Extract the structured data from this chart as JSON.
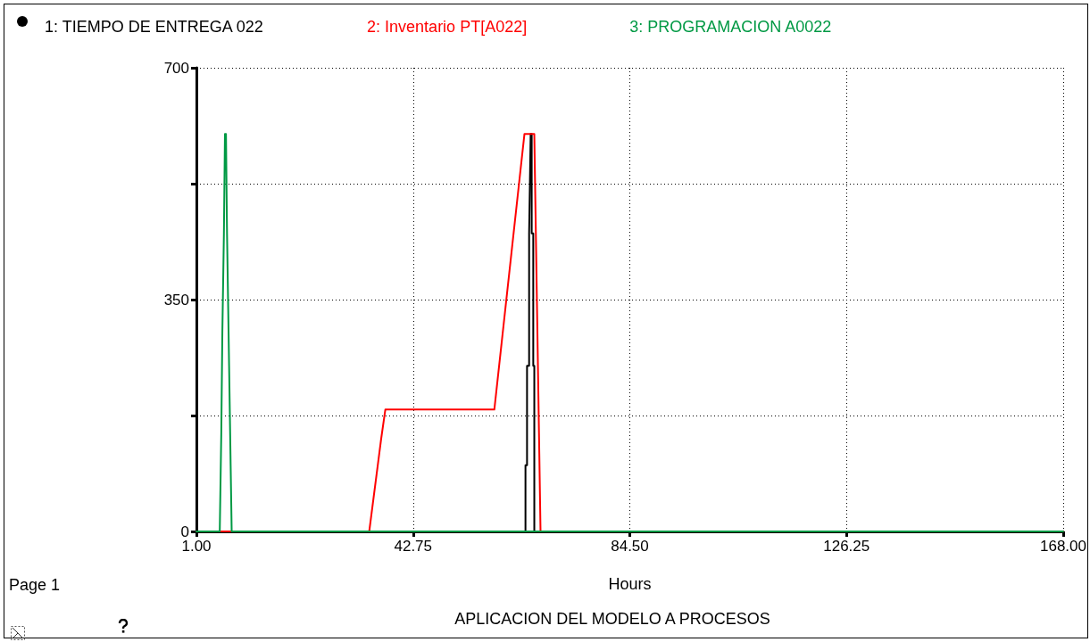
{
  "chart_data": {
    "type": "line",
    "xlabel": "Hours",
    "annotations": [
      "APLICACION DEL MODELO A PROCESOS",
      "Page 1"
    ],
    "xlim": [
      1,
      168
    ],
    "xticks": [
      {
        "value": 1,
        "label": "1.00"
      },
      {
        "value": 42.75,
        "label": "42.75"
      },
      {
        "value": 84.5,
        "label": "84.50"
      },
      {
        "value": 126.25,
        "label": "126.25"
      },
      {
        "value": 168,
        "label": "168.00"
      }
    ],
    "ylim": [
      0,
      700
    ],
    "yticks": [
      0,
      {
        "value": 175,
        "label": null
      },
      350,
      {
        "value": 525,
        "label": null
      },
      700
    ],
    "grid": true,
    "legend": "top",
    "marker": "none",
    "line_style": "solid",
    "series": [
      {
        "name": "1: TIEMPO DE ENTREGA 022",
        "color": "#000000",
        "x": [
          1,
          64.4,
          64.4,
          64.7,
          64.7,
          65.1,
          65.1,
          65.4,
          65.6,
          65.6,
          65.9,
          65.9,
          66.1,
          66.1,
          168
        ],
        "values": [
          0,
          0,
          100,
          100,
          250,
          250,
          450,
          600,
          600,
          450,
          450,
          250,
          250,
          0,
          0
        ]
      },
      {
        "name": "2: Inventario PT[A022]",
        "color": "#ff0000",
        "x": [
          1,
          34.3,
          36.6,
          37.4,
          58.4,
          64.2,
          66.1,
          66.4,
          66.7,
          67.0,
          67.3,
          168
        ],
        "values": [
          0,
          0,
          140,
          184,
          184,
          600,
          600,
          450,
          300,
          150,
          0,
          0
        ]
      },
      {
        "name": "3: PROGRAMACION A0022",
        "color": "#009944",
        "x": [
          1,
          5.5,
          5.8,
          6.0,
          6.3,
          6.5,
          6.7,
          6.9,
          7.1,
          7.3,
          7.6,
          7.8,
          168
        ],
        "values": [
          0,
          0,
          150,
          300,
          450,
          600,
          600,
          450,
          350,
          250,
          100,
          0,
          0
        ]
      }
    ]
  }
}
